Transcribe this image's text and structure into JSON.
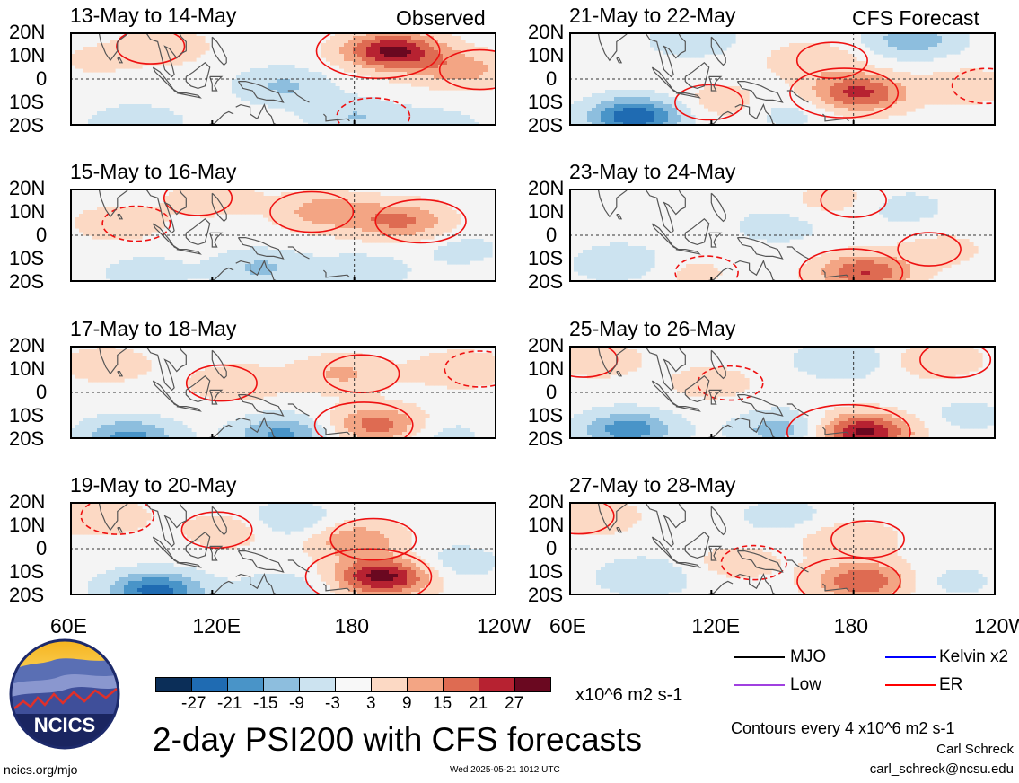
{
  "chart_data": {
    "type": "heatmap",
    "title": "2-day PSI200 with CFS forecasts",
    "xlabel": "",
    "ylabel": "",
    "x_ticks": [
      "60E",
      "120E",
      "180",
      "120W"
    ],
    "y_ticks": [
      "20N",
      "10N",
      "0",
      "10S",
      "20S"
    ],
    "colorbar": {
      "ticks": [
        "-27",
        "-21",
        "-15",
        "-9",
        "-3",
        "3",
        "9",
        "15",
        "21",
        "27"
      ],
      "units": "x10^6 m2 s-1",
      "colors": [
        "#0b2e58",
        "#1f6bb2",
        "#4994c8",
        "#8dbede",
        "#cce3f0",
        "#f8f8f8",
        "#fcd9c4",
        "#f3a584",
        "#de6b52",
        "#b72231",
        "#6a0820"
      ]
    },
    "contour_note": "Contours every 4 x10^6 m2 s-1",
    "legend": [
      {
        "label": "MJO",
        "color": "#000000"
      },
      {
        "label": "Kelvin x2",
        "color": "#0000ff"
      },
      {
        "label": "Low",
        "color": "#a040e0"
      },
      {
        "label": "ER",
        "color": "#ff0000"
      }
    ],
    "panels": [
      {
        "label": "13-May to 14-May",
        "tag": "Observed",
        "kind": "observed",
        "anomalies": [
          {
            "lon": 196,
            "lat": 12,
            "amp": 29
          },
          {
            "lon": 225,
            "lat": 4,
            "amp": 12
          },
          {
            "lon": 100,
            "lat": 14,
            "amp": 7
          },
          {
            "lon": 180,
            "lat": -16,
            "amp": -9
          },
          {
            "lon": 150,
            "lat": -3,
            "amp": -10
          },
          {
            "lon": 88,
            "lat": -19,
            "amp": -8
          },
          {
            "lon": 215,
            "lat": -20,
            "amp": -6
          },
          {
            "lon": 70,
            "lat": 8,
            "amp": 4
          }
        ]
      },
      {
        "label": "15-May to 16-May",
        "tag": "",
        "kind": "observed",
        "anomalies": [
          {
            "lon": 168,
            "lat": 10,
            "amp": 13
          },
          {
            "lon": 200,
            "lat": 6,
            "amp": 16
          },
          {
            "lon": 120,
            "lat": 16,
            "amp": 7
          },
          {
            "lon": 80,
            "lat": 5,
            "amp": 7
          },
          {
            "lon": 140,
            "lat": -14,
            "amp": -10
          },
          {
            "lon": 182,
            "lat": -16,
            "amp": -8
          },
          {
            "lon": 92,
            "lat": -16,
            "amp": -6
          },
          {
            "lon": 225,
            "lat": -6,
            "amp": -5
          }
        ]
      },
      {
        "label": "17-May to 18-May",
        "tag": "",
        "kind": "observed",
        "anomalies": [
          {
            "lon": 190,
            "lat": -14,
            "amp": 19
          },
          {
            "lon": 175,
            "lat": 8,
            "amp": 10
          },
          {
            "lon": 130,
            "lat": 4,
            "amp": 8
          },
          {
            "lon": 225,
            "lat": 10,
            "amp": 8
          },
          {
            "lon": 85,
            "lat": -19,
            "amp": -17
          },
          {
            "lon": 150,
            "lat": -18,
            "amp": -17
          },
          {
            "lon": 215,
            "lat": -18,
            "amp": -6
          },
          {
            "lon": 75,
            "lat": 12,
            "amp": 7
          }
        ]
      },
      {
        "label": "19-May to 20-May",
        "tag": "",
        "kind": "observed",
        "anomalies": [
          {
            "lon": 192,
            "lat": -12,
            "amp": 30
          },
          {
            "lon": 180,
            "lat": 4,
            "amp": 14
          },
          {
            "lon": 128,
            "lat": 8,
            "amp": 8
          },
          {
            "lon": 72,
            "lat": 14,
            "amp": 9
          },
          {
            "lon": 96,
            "lat": -18,
            "amp": -24
          },
          {
            "lon": 152,
            "lat": 12,
            "amp": -10
          },
          {
            "lon": 222,
            "lat": -6,
            "amp": -7
          },
          {
            "lon": 150,
            "lat": -18,
            "amp": -8
          }
        ]
      },
      {
        "label": "21-May to 22-May",
        "tag": "CFS Forecast",
        "kind": "forecast",
        "anomalies": [
          {
            "lon": 182,
            "lat": -6,
            "amp": 23
          },
          {
            "lon": 163,
            "lat": 8,
            "amp": 8
          },
          {
            "lon": 125,
            "lat": -10,
            "amp": 7
          },
          {
            "lon": 228,
            "lat": -3,
            "amp": 7
          },
          {
            "lon": 88,
            "lat": -16,
            "amp": -26
          },
          {
            "lon": 205,
            "lat": 17,
            "amp": -13
          },
          {
            "lon": 112,
            "lat": 17,
            "amp": -7
          },
          {
            "lon": 152,
            "lat": -14,
            "amp": -6
          }
        ]
      },
      {
        "label": "23-May to 24-May",
        "tag": "",
        "kind": "forecast",
        "anomalies": [
          {
            "lon": 185,
            "lat": -16,
            "amp": 21
          },
          {
            "lon": 172,
            "lat": 15,
            "amp": 6
          },
          {
            "lon": 218,
            "lat": -6,
            "amp": 5
          },
          {
            "lon": 110,
            "lat": -16,
            "amp": 5
          },
          {
            "lon": 82,
            "lat": -12,
            "amp": -9
          },
          {
            "lon": 200,
            "lat": 12,
            "amp": -6
          },
          {
            "lon": 148,
            "lat": 4,
            "amp": -6
          }
        ]
      },
      {
        "label": "25-May to 26-May",
        "tag": "",
        "kind": "forecast",
        "anomalies": [
          {
            "lon": 184,
            "lat": -17,
            "amp": 29
          },
          {
            "lon": 215,
            "lat": 14,
            "amp": 8
          },
          {
            "lon": 72,
            "lat": 14,
            "amp": 7
          },
          {
            "lon": 120,
            "lat": 4,
            "amp": 6
          },
          {
            "lon": 85,
            "lat": -16,
            "amp": -19
          },
          {
            "lon": 150,
            "lat": -16,
            "amp": -13
          },
          {
            "lon": 175,
            "lat": 14,
            "amp": -9
          },
          {
            "lon": 228,
            "lat": -10,
            "amp": -5
          }
        ]
      },
      {
        "label": "27-May to 28-May",
        "tag": "",
        "kind": "forecast",
        "anomalies": [
          {
            "lon": 184,
            "lat": -14,
            "amp": 21
          },
          {
            "lon": 178,
            "lat": 4,
            "amp": 9
          },
          {
            "lon": 70,
            "lat": 14,
            "amp": 8
          },
          {
            "lon": 130,
            "lat": -6,
            "amp": 6
          },
          {
            "lon": 92,
            "lat": -12,
            "amp": -9
          },
          {
            "lon": 150,
            "lat": 14,
            "amp": -6
          },
          {
            "lon": 222,
            "lat": -14,
            "amp": -5
          }
        ]
      }
    ]
  },
  "logo_text": "NCICS",
  "footer": {
    "url": "ncics.org/mjo",
    "timestamp": "Wed 2025-05-21 1012 UTC",
    "author": "Carl Schreck",
    "email": "carl_schreck@ncsu.edu"
  }
}
